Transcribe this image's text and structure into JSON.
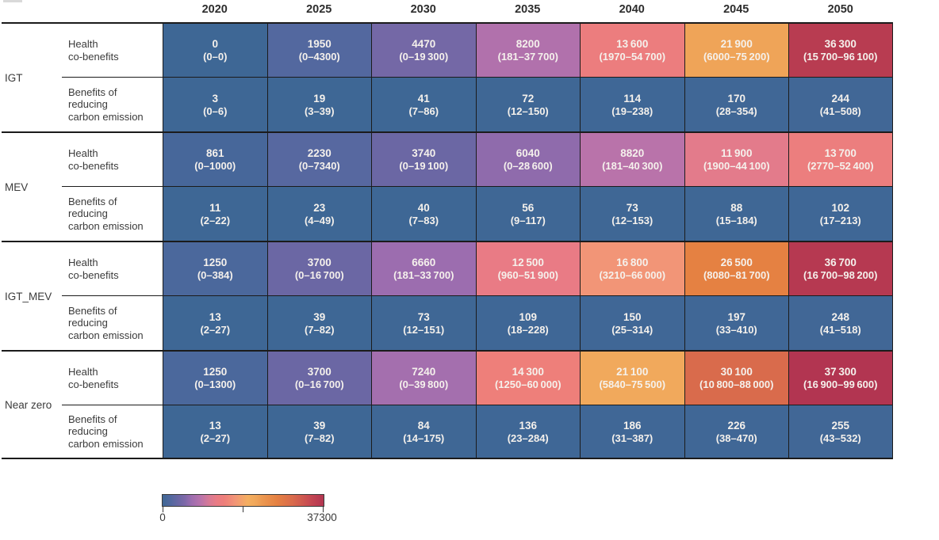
{
  "figure": {
    "colors": {
      "cell_text": "#f5f1ec",
      "label_text": "#3b3b3b",
      "line": "#1b1b1b"
    },
    "colormap": [
      {
        "t": 0.0,
        "c": "#3e6795"
      },
      {
        "t": 0.05,
        "c": "#52689f"
      },
      {
        "t": 0.1,
        "c": "#6b67a4"
      },
      {
        "t": 0.14,
        "c": "#7e69a9"
      },
      {
        "t": 0.18,
        "c": "#9d6daf"
      },
      {
        "t": 0.235,
        "c": "#b873ab"
      },
      {
        "t": 0.29,
        "c": "#d87a95"
      },
      {
        "t": 0.335,
        "c": "#e97b85"
      },
      {
        "t": 0.385,
        "c": "#ee7f7a"
      },
      {
        "t": 0.45,
        "c": "#f29577"
      },
      {
        "t": 0.53,
        "c": "#f4af60"
      },
      {
        "t": 0.58,
        "c": "#f0a65a"
      },
      {
        "t": 0.62,
        "c": "#ec9850"
      },
      {
        "t": 0.71,
        "c": "#e58142"
      },
      {
        "t": 0.81,
        "c": "#d96a4c"
      },
      {
        "t": 0.91,
        "c": "#c74b52"
      },
      {
        "t": 1.0,
        "c": "#b23551"
      }
    ]
  },
  "chart_data": {
    "type": "heatmap",
    "columns": [
      "2020",
      "2025",
      "2030",
      "2035",
      "2040",
      "2045",
      "2050"
    ],
    "colorbar": {
      "min": 0,
      "max": 37300,
      "min_label": "0",
      "max_label": "37300"
    },
    "row_groups": [
      {
        "label": "IGT",
        "rows": [
          {
            "label": "Health\nco-benefits",
            "cells": [
              {
                "v": 0,
                "text": "0",
                "range": "(0–0)"
              },
              {
                "v": 1950,
                "text": "1950",
                "range": "(0–4300)"
              },
              {
                "v": 4470,
                "text": "4470",
                "range": "(0–19 300)"
              },
              {
                "v": 8200,
                "text": "8200",
                "range": "(181–37 700)"
              },
              {
                "v": 13600,
                "text": "13 600",
                "range": "(1970–54 700)"
              },
              {
                "v": 21900,
                "text": "21 900",
                "range": "(6000–75 200)"
              },
              {
                "v": 36300,
                "text": "36 300",
                "range": "(15 700–96 100)"
              }
            ]
          },
          {
            "label": "Benefits of\nreducing\ncarbon emission",
            "cells": [
              {
                "v": 3,
                "text": "3",
                "range": "(0–6)"
              },
              {
                "v": 19,
                "text": "19",
                "range": "(3–39)"
              },
              {
                "v": 41,
                "text": "41",
                "range": "(7–86)"
              },
              {
                "v": 72,
                "text": "72",
                "range": "(12–150)"
              },
              {
                "v": 114,
                "text": "114",
                "range": "(19–238)"
              },
              {
                "v": 170,
                "text": "170",
                "range": "(28–354)"
              },
              {
                "v": 244,
                "text": "244",
                "range": "(41–508)"
              }
            ]
          }
        ]
      },
      {
        "label": "MEV",
        "rows": [
          {
            "label": "Health\nco-benefits",
            "cells": [
              {
                "v": 861,
                "text": "861",
                "range": "(0–1000)"
              },
              {
                "v": 2230,
                "text": "2230",
                "range": "(0–7340)"
              },
              {
                "v": 3740,
                "text": "3740",
                "range": "(0–19 100)"
              },
              {
                "v": 6040,
                "text": "6040",
                "range": "(0–28 600)"
              },
              {
                "v": 8820,
                "text": "8820",
                "range": "(181–40 300)"
              },
              {
                "v": 11900,
                "text": "11 900",
                "range": "(1900–44 100)"
              },
              {
                "v": 13700,
                "text": "13 700",
                "range": "(2770–52 400)"
              }
            ]
          },
          {
            "label": "Benefits of\nreducing\ncarbon emission",
            "cells": [
              {
                "v": 11,
                "text": "11",
                "range": "(2–22)"
              },
              {
                "v": 23,
                "text": "23",
                "range": "(4–49)"
              },
              {
                "v": 40,
                "text": "40",
                "range": "(7–83)"
              },
              {
                "v": 56,
                "text": "56",
                "range": "(9–117)"
              },
              {
                "v": 73,
                "text": "73",
                "range": "(12–153)"
              },
              {
                "v": 88,
                "text": "88",
                "range": "(15–184)"
              },
              {
                "v": 102,
                "text": "102",
                "range": "(17–213)"
              }
            ]
          }
        ]
      },
      {
        "label": "IGT_MEV",
        "rows": [
          {
            "label": "Health\nco-benefits",
            "cells": [
              {
                "v": 1250,
                "text": "1250",
                "range": "(0–384)"
              },
              {
                "v": 3700,
                "text": "3700",
                "range": "(0–16 700)"
              },
              {
                "v": 6660,
                "text": "6660",
                "range": "(181–33 700)"
              },
              {
                "v": 12500,
                "text": "12 500",
                "range": "(960–51 900)"
              },
              {
                "v": 16800,
                "text": "16 800",
                "range": "(3210–66 000)"
              },
              {
                "v": 26500,
                "text": "26 500",
                "range": "(8080–81 700)"
              },
              {
                "v": 36700,
                "text": "36 700",
                "range": "(16 700–98 200)"
              }
            ]
          },
          {
            "label": "Benefits of\nreducing\ncarbon emission",
            "cells": [
              {
                "v": 13,
                "text": "13",
                "range": "(2–27)"
              },
              {
                "v": 39,
                "text": "39",
                "range": "(7–82)"
              },
              {
                "v": 73,
                "text": "73",
                "range": "(12–151)"
              },
              {
                "v": 109,
                "text": "109",
                "range": "(18–228)"
              },
              {
                "v": 150,
                "text": "150",
                "range": "(25–314)"
              },
              {
                "v": 197,
                "text": "197",
                "range": "(33–410)"
              },
              {
                "v": 248,
                "text": "248",
                "range": "(41–518)"
              }
            ]
          }
        ]
      },
      {
        "label": "Near zero",
        "rows": [
          {
            "label": "Health\nco-benefits",
            "cells": [
              {
                "v": 1250,
                "text": "1250",
                "range": "(0–1300)"
              },
              {
                "v": 3700,
                "text": "3700",
                "range": "(0–16 700)"
              },
              {
                "v": 7240,
                "text": "7240",
                "range": "(0–39 800)"
              },
              {
                "v": 14300,
                "text": "14 300",
                "range": "(1250–60 000)"
              },
              {
                "v": 21100,
                "text": "21 100",
                "range": "(5840–75 500)"
              },
              {
                "v": 30100,
                "text": "30 100",
                "range": "(10 800–88 000)"
              },
              {
                "v": 37300,
                "text": "37 300",
                "range": "(16 900–99 600)"
              }
            ]
          },
          {
            "label": "Benefits of\nreducing\ncarbon emission",
            "cells": [
              {
                "v": 13,
                "text": "13",
                "range": "(2–27)"
              },
              {
                "v": 39,
                "text": "39",
                "range": "(7–82)"
              },
              {
                "v": 84,
                "text": "84",
                "range": "(14–175)"
              },
              {
                "v": 136,
                "text": "136",
                "range": "(23–284)"
              },
              {
                "v": 186,
                "text": "186",
                "range": "(31–387)"
              },
              {
                "v": 226,
                "text": "226",
                "range": "(38–470)"
              },
              {
                "v": 255,
                "text": "255",
                "range": "(43–532)"
              }
            ]
          }
        ]
      }
    ]
  }
}
